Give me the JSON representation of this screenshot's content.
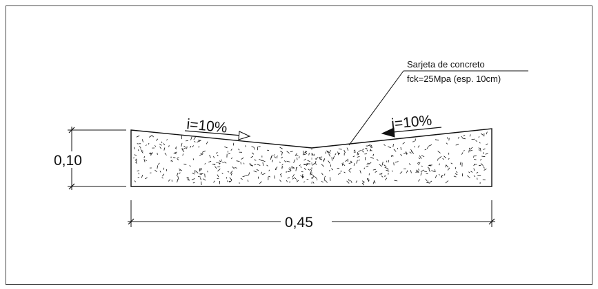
{
  "drawing": {
    "colors": {
      "line": "#111111",
      "background": "#ffffff",
      "frame": "#444444"
    },
    "slope_left": {
      "label": "i=10%",
      "arrow_direction": "right"
    },
    "slope_right": {
      "label": "i=10%",
      "arrow_direction": "left"
    },
    "callout": {
      "line1": "Sarjeta de concreto",
      "line2": "fck=25Mpa (esp. 10cm)"
    },
    "dimension_height": {
      "label": "0,10"
    },
    "dimension_width": {
      "label": "0,45"
    },
    "material_pattern": "concrete-hatch"
  }
}
